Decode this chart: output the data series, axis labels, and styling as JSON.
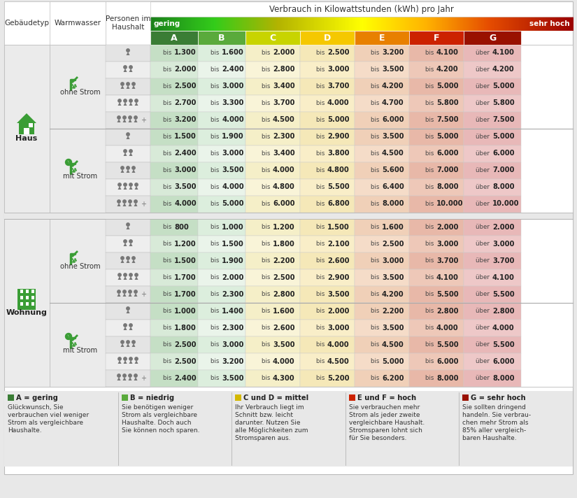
{
  "title": "Verbrauch in Kilowattstunden (kWh) pro Jahr",
  "col_headers": [
    "A",
    "B",
    "C",
    "D",
    "E",
    "F",
    "G"
  ],
  "col_header_colors": [
    "#3a7d35",
    "#5aaa3c",
    "#c8d400",
    "#f5c800",
    "#e88000",
    "#cc2200",
    "#991100"
  ],
  "gradient_label_left": "gering",
  "gradient_label_right": "sehr hoch",
  "header_cols": [
    "Gebäudetyp",
    "Warmwasser",
    "Personen im\nHaushalt"
  ],
  "cell_bg_A_even": "#c5dfc5",
  "cell_bg_A_odd": "#d8ead8",
  "cell_bg_B_even": "#dceedd",
  "cell_bg_B_odd": "#eaf4ea",
  "cell_bg_C_even": "#f5efc8",
  "cell_bg_C_odd": "#f9f4d8",
  "cell_bg_D_even": "#f5e8b8",
  "cell_bg_D_odd": "#f9eec8",
  "cell_bg_E_even": "#f0d0b8",
  "cell_bg_E_odd": "#f5dcc8",
  "cell_bg_F_even": "#e8b8a8",
  "cell_bg_F_odd": "#eec8b8",
  "cell_bg_G_even": "#e8b8b8",
  "cell_bg_G_odd": "#eec8c8",
  "left_col_bg": "#ebebeb",
  "section_sep_bg": "#d8d8d8",
  "outer_bg": "#e8e8e8",
  "haus_rows": [
    {
      "water": "ohne Strom",
      "persons": 1,
      "values": [
        "bis 1.300",
        "bis 1.600",
        "bis 2.000",
        "bis 2.500",
        "bis 3.200",
        "bis 4.100",
        "über 4.100"
      ]
    },
    {
      "water": "ohne Strom",
      "persons": 2,
      "values": [
        "bis 2.000",
        "bis 2.400",
        "bis 2.800",
        "bis 3.000",
        "bis 3.500",
        "bis 4.200",
        "über 4.200"
      ]
    },
    {
      "water": "ohne Strom",
      "persons": 3,
      "values": [
        "bis 2.500",
        "bis 3.000",
        "bis 3.400",
        "bis 3.700",
        "bis 4.200",
        "bis 5.000",
        "über 5.000"
      ]
    },
    {
      "water": "ohne Strom",
      "persons": 4,
      "values": [
        "bis 2.700",
        "bis 3.300",
        "bis 3.700",
        "bis 4.000",
        "bis 4.700",
        "bis 5.800",
        "über 5.800"
      ]
    },
    {
      "water": "ohne Strom",
      "persons": 5,
      "values": [
        "bis 3.200",
        "bis 4.000",
        "bis 4.500",
        "bis 5.000",
        "bis 6.000",
        "bis 7.500",
        "über 7.500"
      ]
    },
    {
      "water": "mit Strom",
      "persons": 1,
      "values": [
        "bis 1.500",
        "bis 1.900",
        "bis 2.300",
        "bis 2.900",
        "bis 3.500",
        "bis 5.000",
        "über 5.000"
      ]
    },
    {
      "water": "mit Strom",
      "persons": 2,
      "values": [
        "bis 2.400",
        "bis 3.000",
        "bis 3.400",
        "bis 3.800",
        "bis 4.500",
        "bis 6.000",
        "über 6.000"
      ]
    },
    {
      "water": "mit Strom",
      "persons": 3,
      "values": [
        "bis 3.000",
        "bis 3.500",
        "bis 4.000",
        "bis 4.800",
        "bis 5.600",
        "bis 7.000",
        "über 7.000"
      ]
    },
    {
      "water": "mit Strom",
      "persons": 4,
      "values": [
        "bis 3.500",
        "bis 4.000",
        "bis 4.800",
        "bis 5.500",
        "bis 6.400",
        "bis 8.000",
        "über 8.000"
      ]
    },
    {
      "water": "mit Strom",
      "persons": 5,
      "values": [
        "bis 4.000",
        "bis 5.000",
        "bis 6.000",
        "bis 6.800",
        "bis 8.000",
        "bis 10.000",
        "über 10.000"
      ]
    }
  ],
  "wohnung_rows": [
    {
      "water": "ohne Strom",
      "persons": 1,
      "values": [
        "bis 800",
        "bis 1.000",
        "bis 1.200",
        "bis 1.500",
        "bis 1.600",
        "bis 2.000",
        "über 2.000"
      ]
    },
    {
      "water": "ohne Strom",
      "persons": 2,
      "values": [
        "bis 1.200",
        "bis 1.500",
        "bis 1.800",
        "bis 2.100",
        "bis 2.500",
        "bis 3.000",
        "über 3.000"
      ]
    },
    {
      "water": "ohne Strom",
      "persons": 3,
      "values": [
        "bis 1.500",
        "bis 1.900",
        "bis 2.200",
        "bis 2.600",
        "bis 3.000",
        "bis 3.700",
        "über 3.700"
      ]
    },
    {
      "water": "ohne Strom",
      "persons": 4,
      "values": [
        "bis 1.700",
        "bis 2.000",
        "bis 2.500",
        "bis 2.900",
        "bis 3.500",
        "bis 4.100",
        "über 4.100"
      ]
    },
    {
      "water": "ohne Strom",
      "persons": 5,
      "values": [
        "bis 1.700",
        "bis 2.300",
        "bis 2.800",
        "bis 3.500",
        "bis 4.200",
        "bis 5.500",
        "über 5.500"
      ]
    },
    {
      "water": "mit Strom",
      "persons": 1,
      "values": [
        "bis 1.000",
        "bis 1.400",
        "bis 1.600",
        "bis 2.000",
        "bis 2.200",
        "bis 2.800",
        "über 2.800"
      ]
    },
    {
      "water": "mit Strom",
      "persons": 2,
      "values": [
        "bis 1.800",
        "bis 2.300",
        "bis 2.600",
        "bis 3.000",
        "bis 3.500",
        "bis 4.000",
        "über 4.000"
      ]
    },
    {
      "water": "mit Strom",
      "persons": 3,
      "values": [
        "bis 2.500",
        "bis 3.000",
        "bis 3.500",
        "bis 4.000",
        "bis 4.500",
        "bis 5.500",
        "über 5.500"
      ]
    },
    {
      "water": "mit Strom",
      "persons": 4,
      "values": [
        "bis 2.500",
        "bis 3.200",
        "bis 4.000",
        "bis 4.500",
        "bis 5.000",
        "bis 6.000",
        "über 6.000"
      ]
    },
    {
      "water": "mit Strom",
      "persons": 5,
      "values": [
        "bis 2.400",
        "bis 3.500",
        "bis 4.300",
        "bis 5.200",
        "bis 6.200",
        "bis 8.000",
        "über 8.000"
      ]
    }
  ],
  "legend_items": [
    {
      "color": "#3a7d35",
      "label": "A = gering",
      "desc": "Glückwunsch, Sie\nverbrauchen viel weniger\nStrom als vergleichbare\nHaushalte."
    },
    {
      "color": "#5aaa3c",
      "label": "B = niedrig",
      "desc": "Sie benötigen weniger\nStrom als vergleichbare\nHaushalte. Doch auch\nSie können noch sparen."
    },
    {
      "color": "#d4b800",
      "label": "C und D = mittel",
      "desc": "Ihr Verbrauch liegt im\nSchnitt bzw. leicht\ndarunter. Nutzen Sie\nalle Möglichkeiten zum\nStromsparen aus."
    },
    {
      "color": "#cc2200",
      "label": "E und F = hoch",
      "desc": "Sie verbrauchen mehr\nStrom als jeder zweite\nvergleichbare Haushalt.\nStromsparen lohnt sich\nfür Sie besonders."
    },
    {
      "color": "#991100",
      "label": "G = sehr hoch",
      "desc": "Sie sollten dringend\nhandeln. Sie verbrau-\nchen mehr Strom als\n85% aller vergleich-\nbaren Haushalte."
    }
  ]
}
